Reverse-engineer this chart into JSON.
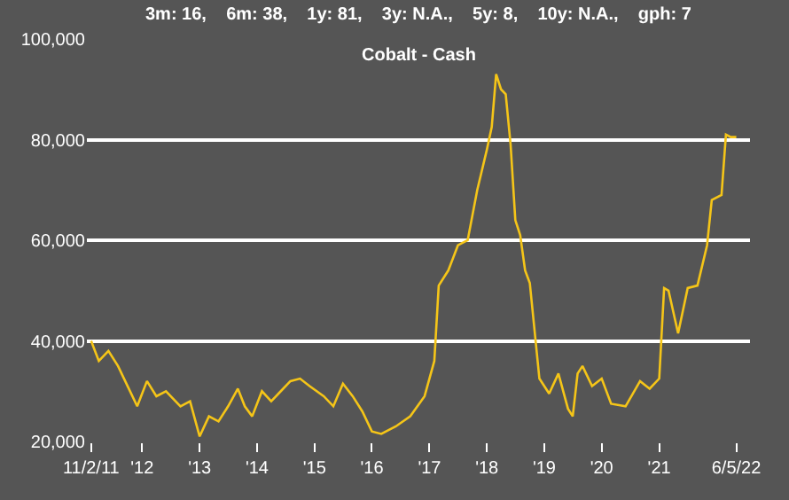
{
  "chart_data": {
    "type": "line",
    "title": "Cobalt - Cash",
    "subtitle": "3m: 16,    6m: 38,    1y: 81,    3y: N.A.,    5y: 8,    10y: N.A.,    gph: 7",
    "x": [
      "2011-02-11",
      "2011-04-01",
      "2011-06-01",
      "2011-08-01",
      "2011-10-01",
      "2011-12-01",
      "2012-02-01",
      "2012-04-01",
      "2012-06-01",
      "2012-09-01",
      "2012-11-01",
      "2013-01-01",
      "2013-03-01",
      "2013-05-01",
      "2013-07-01",
      "2013-09-01",
      "2013-10-15",
      "2013-12-01",
      "2014-02-01",
      "2014-04-01",
      "2014-06-01",
      "2014-08-01",
      "2014-10-01",
      "2014-12-01",
      "2015-03-01",
      "2015-05-01",
      "2015-07-01",
      "2015-09-01",
      "2015-11-01",
      "2016-01-01",
      "2016-03-01",
      "2016-06-01",
      "2016-09-01",
      "2016-12-01",
      "2017-02-01",
      "2017-03-01",
      "2017-05-01",
      "2017-07-01",
      "2017-09-01",
      "2017-11-01",
      "2018-01-01",
      "2018-02-01",
      "2018-03-01",
      "2018-04-01",
      "2018-05-01",
      "2018-06-01",
      "2018-07-01",
      "2018-08-01",
      "2018-09-01",
      "2018-10-01",
      "2018-12-01",
      "2019-02-01",
      "2019-04-01",
      "2019-06-01",
      "2019-07-01",
      "2019-08-01",
      "2019-09-01",
      "2019-11-01",
      "2020-01-01",
      "2020-03-01",
      "2020-06-01",
      "2020-09-01",
      "2020-11-01",
      "2021-01-01",
      "2021-02-01",
      "2021-03-01",
      "2021-05-01",
      "2021-07-01",
      "2021-09-01",
      "2021-11-01",
      "2021-12-01",
      "2022-02-01",
      "2022-03-01",
      "2022-04-01",
      "2022-05-06"
    ],
    "series": [
      {
        "color": "#f5c518",
        "values": [
          40000,
          36000,
          38000,
          35000,
          31000,
          27000,
          32000,
          29000,
          30000,
          27000,
          28000,
          21000,
          25000,
          24000,
          27000,
          30500,
          27000,
          25000,
          30000,
          28000,
          30000,
          32000,
          32500,
          31000,
          29000,
          27000,
          31500,
          29000,
          26000,
          22000,
          21500,
          23000,
          25000,
          29000,
          36000,
          51000,
          54000,
          59000,
          60000,
          70000,
          78000,
          82500,
          93000,
          90000,
          89000,
          79000,
          64000,
          61000,
          54000,
          51500,
          32500,
          29500,
          33500,
          26500,
          25000,
          33500,
          35000,
          31000,
          32500,
          27500,
          27000,
          32000,
          30500,
          32500,
          50500,
          50000,
          41500,
          50500,
          51000,
          59000,
          68000,
          69000,
          81000,
          80500,
          80500
        ]
      }
    ],
    "xlim": [
      "2011-01-15",
      "2022-08-01"
    ],
    "xticks": [
      {
        "value": "2011-02-11",
        "label": "11/2/11"
      },
      {
        "value": "2012-01-01",
        "label": "'12"
      },
      {
        "value": "2013-01-01",
        "label": "'13"
      },
      {
        "value": "2014-01-01",
        "label": "'14"
      },
      {
        "value": "2015-01-01",
        "label": "'15"
      },
      {
        "value": "2016-01-01",
        "label": "'16"
      },
      {
        "value": "2017-01-01",
        "label": "'17"
      },
      {
        "value": "2018-01-01",
        "label": "'18"
      },
      {
        "value": "2019-01-01",
        "label": "'19"
      },
      {
        "value": "2020-01-01",
        "label": "'20"
      },
      {
        "value": "2021-01-01",
        "label": "'21"
      },
      {
        "value": "2022-05-06",
        "label": "6/5/22"
      }
    ],
    "ylim": [
      20000,
      100000
    ],
    "yticks": [
      {
        "value": 20000,
        "label": "20,000"
      },
      {
        "value": 40000,
        "label": "40,000"
      },
      {
        "value": 60000,
        "label": "60,000"
      },
      {
        "value": 80000,
        "label": "80,000"
      },
      {
        "value": 100000,
        "label": "100,000"
      }
    ],
    "grid": "y",
    "marker": "none",
    "line_style": "solid"
  }
}
